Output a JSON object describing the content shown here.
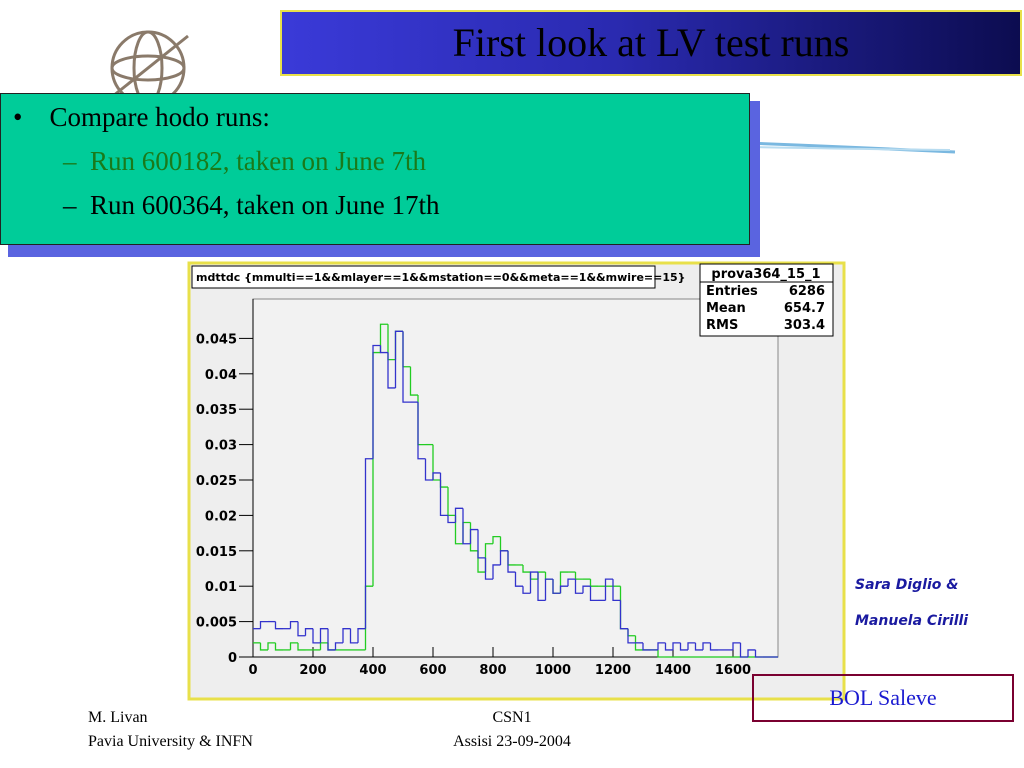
{
  "header": {
    "title": "First look at LV test runs"
  },
  "bullets": [
    {
      "text": "Compare hodo runs:",
      "sub": [
        "Run 600182, taken on June 7th",
        "Run 600364, taken on June 17th"
      ]
    }
  ],
  "credits": [
    "Sara Diglio &",
    "Manuela Cirilli"
  ],
  "label_box": "BOL Saleve",
  "footer": {
    "left": [
      "M. Livan",
      "Pavia University & INFN"
    ],
    "center": [
      "CSN1",
      "Assisi 23-09-2004"
    ]
  },
  "chart_data": {
    "type": "histogram",
    "title": "mdttdc {mmulti==1&&mlayer==1&&mstation==0&&meta==1&&mwire==15}",
    "stats": {
      "name": "prova364_15_1",
      "rows": [
        {
          "label": "Entries",
          "value": 6286
        },
        {
          "label": "Mean",
          "value": 654.7
        },
        {
          "label": "RMS",
          "value": 303.4
        }
      ]
    },
    "bins": [
      0,
      25,
      50,
      75,
      100,
      125,
      150,
      175,
      200,
      225,
      250,
      275,
      300,
      325,
      350,
      375,
      400,
      425,
      450,
      475,
      500,
      525,
      550,
      575,
      600,
      625,
      650,
      675,
      700,
      725,
      750,
      775,
      800,
      825,
      850,
      875,
      900,
      925,
      950,
      975,
      1000,
      1025,
      1050,
      1075,
      1100,
      1125,
      1150,
      1175,
      1200,
      1225,
      1250,
      1275,
      1300,
      1325,
      1350,
      1375,
      1400,
      1425,
      1450,
      1475,
      1500,
      1525,
      1550,
      1575,
      1600,
      1625,
      1650,
      1675,
      1700,
      1725,
      1750
    ],
    "series": [
      {
        "color": "#22cc22",
        "values": [
          0.002,
          0.001,
          0.002,
          0.001,
          0.001,
          0.002,
          0.001,
          0.001,
          0.001,
          0.002,
          0.001,
          0.001,
          0.001,
          0.001,
          0.001,
          0.01,
          0.043,
          0.047,
          0.042,
          0.046,
          0.041,
          0.037,
          0.03,
          0.03,
          0.025,
          0.024,
          0.02,
          0.016,
          0.019,
          0.015,
          0.012,
          0.016,
          0.017,
          0.015,
          0.013,
          0.013,
          0.012,
          0.011,
          0.012,
          0.011,
          0.009,
          0.012,
          0.012,
          0.011,
          0.011,
          0.01,
          0.01,
          0.01,
          0.01,
          0.004,
          0.003,
          0.001,
          0.001,
          0.001,
          0,
          0,
          0,
          0,
          0,
          0,
          0,
          0,
          0,
          0,
          0,
          0,
          0,
          0,
          0,
          0
        ]
      },
      {
        "color": "#3333cc",
        "values": [
          0.004,
          0.005,
          0.005,
          0.004,
          0.004,
          0.005,
          0.003,
          0.004,
          0.002,
          0.004,
          0.001,
          0.002,
          0.004,
          0.002,
          0.004,
          0.028,
          0.044,
          0.043,
          0.038,
          0.046,
          0.036,
          0.036,
          0.028,
          0.025,
          0.026,
          0.02,
          0.019,
          0.021,
          0.016,
          0.018,
          0.014,
          0.011,
          0.013,
          0.015,
          0.012,
          0.01,
          0.009,
          0.012,
          0.008,
          0.011,
          0.009,
          0.01,
          0.011,
          0.009,
          0.01,
          0.008,
          0.008,
          0.011,
          0.008,
          0.004,
          0.002,
          0.002,
          0.001,
          0.001,
          0.002,
          0.001,
          0.002,
          0.001,
          0.002,
          0.001,
          0.002,
          0.001,
          0.001,
          0.001,
          0.002,
          0,
          0.001,
          0,
          0,
          0
        ]
      }
    ],
    "xlim": [
      0,
      1750
    ],
    "xticks": [
      0,
      200,
      400,
      600,
      800,
      1000,
      1200,
      1400,
      1600
    ],
    "ylim": [
      0,
      0.05
    ],
    "yticks": [
      0,
      0.005,
      0.01,
      0.015,
      0.02,
      0.025,
      0.03,
      0.035,
      0.04,
      0.045
    ]
  }
}
